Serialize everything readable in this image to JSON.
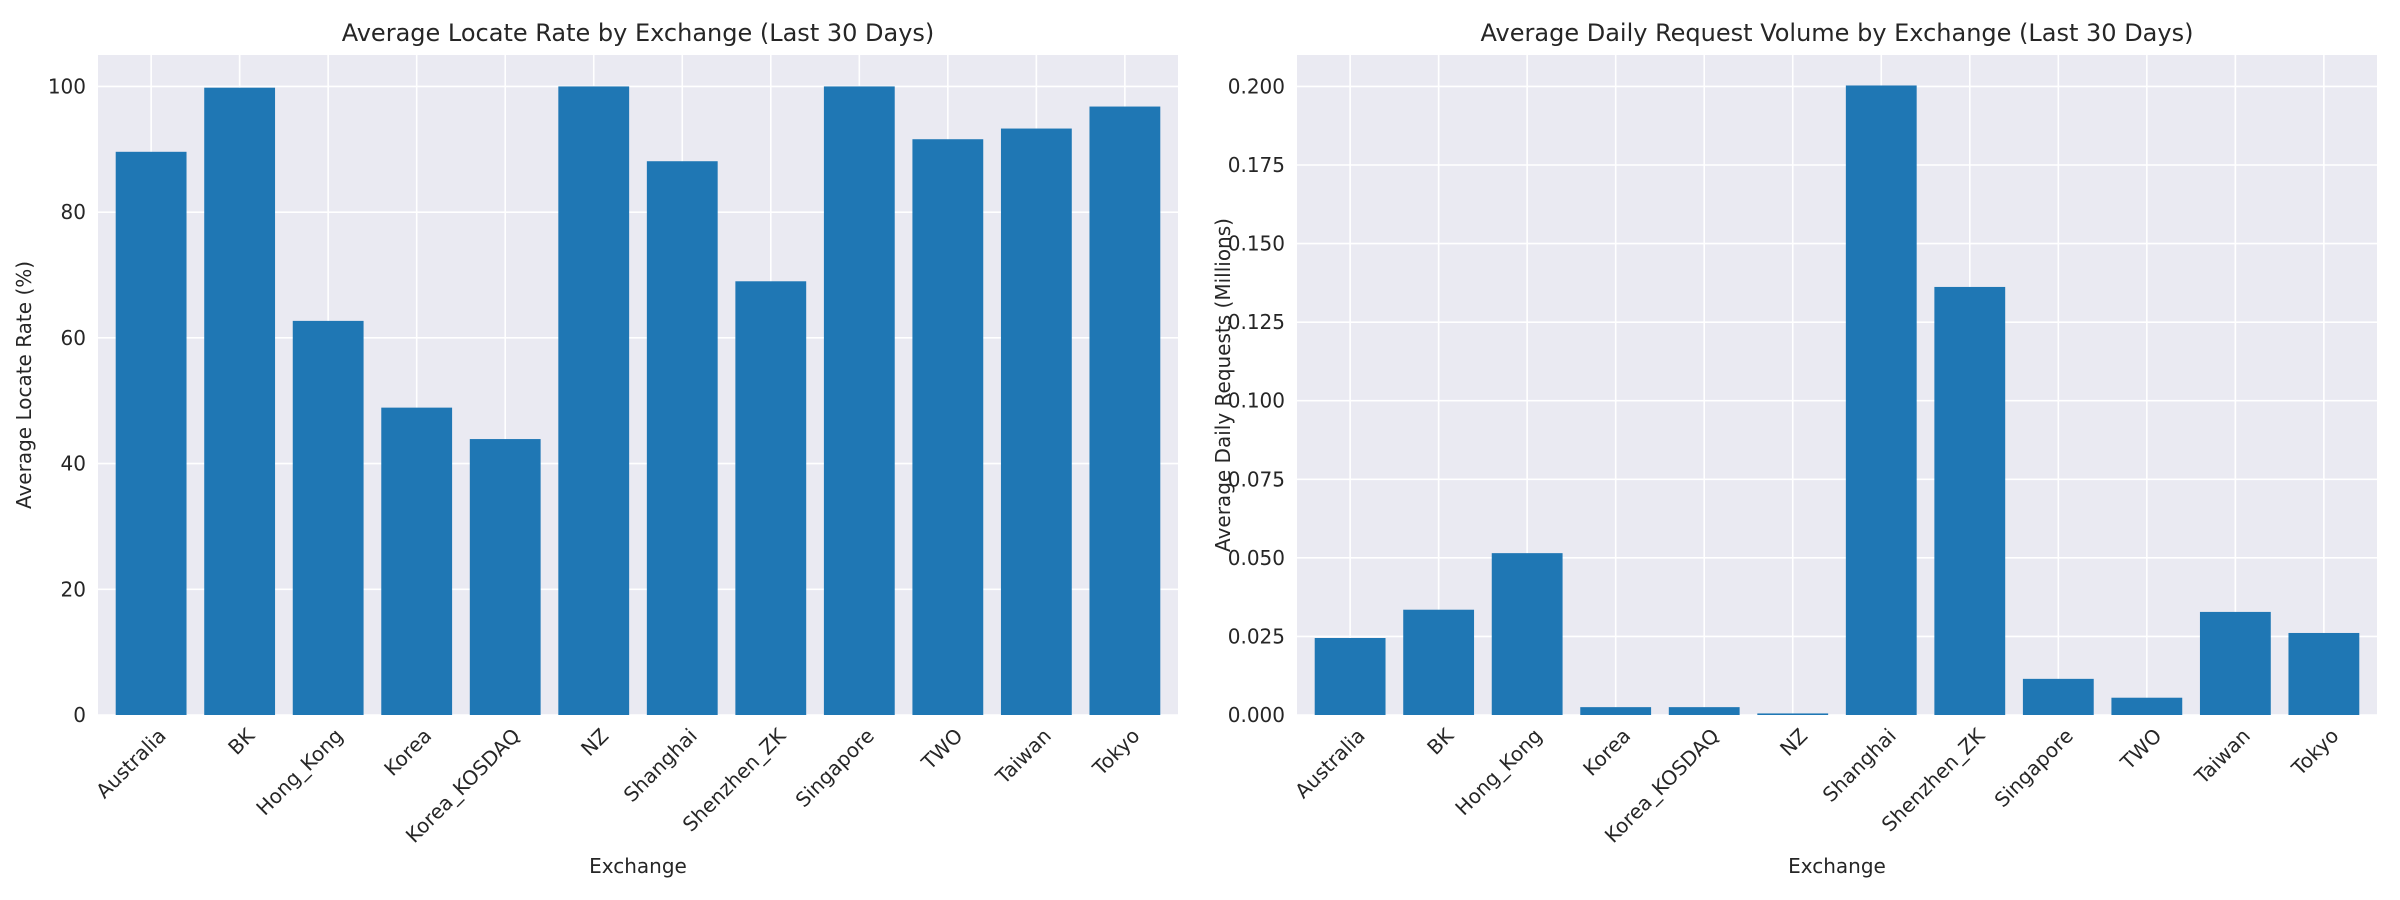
{
  "chart_data": [
    {
      "type": "bar",
      "title": "Average Locate Rate by Exchange (Last 30 Days)",
      "xlabel": "Exchange",
      "ylabel": "Average Locate Rate (%)",
      "categories": [
        "Australia",
        "BK",
        "Hong_Kong",
        "Korea",
        "Korea_KOSDAQ",
        "NZ",
        "Shanghai",
        "Shenzhen_ZK",
        "Singapore",
        "TWO",
        "Taiwan",
        "Tokyo"
      ],
      "values": [
        89.6,
        99.8,
        62.7,
        48.9,
        43.9,
        100.0,
        88.1,
        69.0,
        100.0,
        91.6,
        93.3,
        96.8
      ],
      "ylim": [
        0,
        105
      ],
      "yticks": [
        0,
        20,
        40,
        60,
        80,
        100
      ],
      "ytick_labels": [
        "0",
        "20",
        "40",
        "60",
        "80",
        "100"
      ],
      "grid": true,
      "color": "#1f77b4"
    },
    {
      "type": "bar",
      "title": "Average Daily Request Volume by Exchange (Last 30 Days)",
      "xlabel": "Exchange",
      "ylabel": "Average Daily Requests (Millions)",
      "categories": [
        "Australia",
        "BK",
        "Hong_Kong",
        "Korea",
        "Korea_KOSDAQ",
        "NZ",
        "Shanghai",
        "Shenzhen_ZK",
        "Singapore",
        "TWO",
        "Taiwan",
        "Tokyo"
      ],
      "values": [
        0.0245,
        0.0335,
        0.0515,
        0.0025,
        0.0025,
        0.0005,
        0.2003,
        0.1362,
        0.0115,
        0.0055,
        0.0328,
        0.0261
      ],
      "ylim": [
        0,
        0.21
      ],
      "yticks": [
        0,
        0.025,
        0.05,
        0.075,
        0.1,
        0.125,
        0.15,
        0.175,
        0.2
      ],
      "ytick_labels": [
        "0.000",
        "0.025",
        "0.050",
        "0.075",
        "0.100",
        "0.125",
        "0.150",
        "0.175",
        "0.200"
      ],
      "grid": true,
      "color": "#1f77b4"
    }
  ]
}
